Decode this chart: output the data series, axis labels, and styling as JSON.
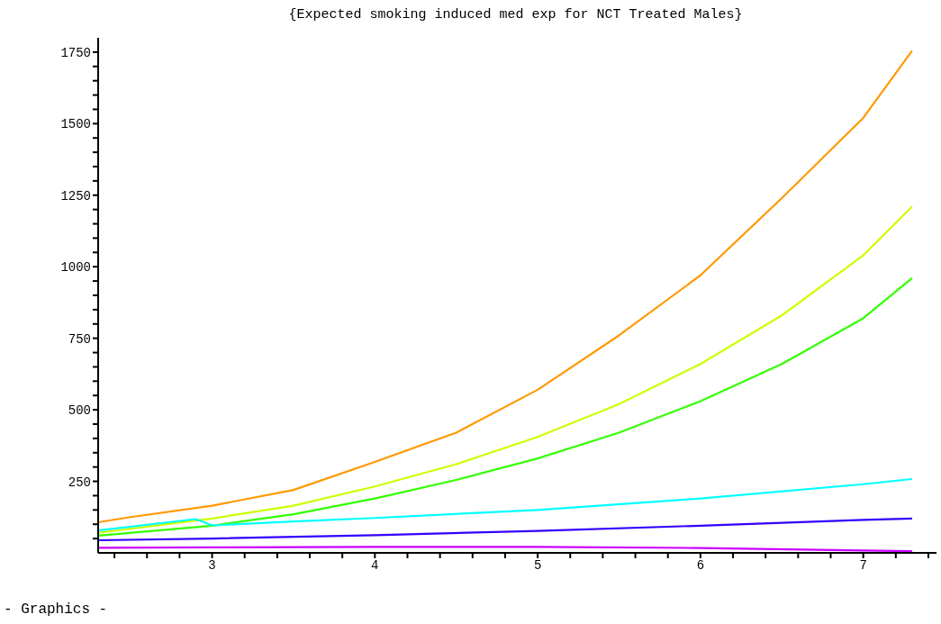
{
  "chart_data": {
    "type": "line",
    "title": "{Expected smoking induced med exp for NCT Treated Males}",
    "annotations": [
      "- Graphics -"
    ],
    "xlim": [
      2.3,
      7.45
    ],
    "xticks": [
      {
        "value": 2.4,
        "label": null
      },
      {
        "value": 2.6,
        "label": null
      },
      {
        "value": 2.8,
        "label": null
      },
      3,
      {
        "value": 3.2,
        "label": null
      },
      {
        "value": 3.4,
        "label": null
      },
      {
        "value": 3.6,
        "label": null
      },
      {
        "value": 3.8,
        "label": null
      },
      4,
      {
        "value": 4.2,
        "label": null
      },
      {
        "value": 4.4,
        "label": null
      },
      {
        "value": 4.6,
        "label": null
      },
      {
        "value": 4.8,
        "label": null
      },
      5,
      {
        "value": 5.2,
        "label": null
      },
      {
        "value": 5.4,
        "label": null
      },
      {
        "value": 5.6,
        "label": null
      },
      {
        "value": 5.8,
        "label": null
      },
      6,
      {
        "value": 6.2,
        "label": null
      },
      {
        "value": 6.4,
        "label": null
      },
      {
        "value": 6.6,
        "label": null
      },
      {
        "value": 6.8,
        "label": null
      },
      7,
      {
        "value": 7.2,
        "label": null
      },
      {
        "value": 7.4,
        "label": null
      }
    ],
    "ylim": [
      0,
      1800
    ],
    "yticks": [
      {
        "value": 50,
        "label": null
      },
      {
        "value": 100,
        "label": null
      },
      {
        "value": 150,
        "label": null
      },
      {
        "value": 200,
        "label": null
      },
      250,
      {
        "value": 300,
        "label": null
      },
      {
        "value": 350,
        "label": null
      },
      {
        "value": 400,
        "label": null
      },
      {
        "value": 450,
        "label": null
      },
      500,
      {
        "value": 550,
        "label": null
      },
      {
        "value": 600,
        "label": null
      },
      {
        "value": 650,
        "label": null
      },
      {
        "value": 700,
        "label": null
      },
      750,
      {
        "value": 800,
        "label": null
      },
      {
        "value": 850,
        "label": null
      },
      {
        "value": 900,
        "label": null
      },
      {
        "value": 950,
        "label": null
      },
      1000,
      {
        "value": 1050,
        "label": null
      },
      {
        "value": 1100,
        "label": null
      },
      {
        "value": 1150,
        "label": null
      },
      {
        "value": 1200,
        "label": null
      },
      1250,
      {
        "value": 1300,
        "label": null
      },
      {
        "value": 1350,
        "label": null
      },
      {
        "value": 1400,
        "label": null
      },
      {
        "value": 1450,
        "label": null
      },
      1500,
      {
        "value": 1550,
        "label": null
      },
      {
        "value": 1600,
        "label": null
      },
      {
        "value": 1650,
        "label": null
      },
      {
        "value": 1700,
        "label": null
      },
      1750
    ],
    "series": [
      {
        "color": "#ff9900",
        "x": [
          2.3,
          2.5,
          3,
          3.5,
          4,
          4.5,
          5,
          5.5,
          6,
          6.5,
          7,
          7.3
        ],
        "values": [
          107,
          125,
          165,
          220,
          318,
          420,
          570,
          760,
          970,
          1240,
          1520,
          1755
        ]
      },
      {
        "color": "#ccff00",
        "x": [
          2.3,
          3,
          3.5,
          4,
          4.5,
          5,
          5.5,
          6,
          6.5,
          7,
          7.3
        ],
        "values": [
          70,
          120,
          165,
          232,
          310,
          405,
          520,
          660,
          830,
          1040,
          1210
        ]
      },
      {
        "color": "#33ff00",
        "x": [
          2.3,
          3,
          3.5,
          4,
          4.5,
          5,
          5.5,
          6,
          6.5,
          7,
          7.3
        ],
        "values": [
          60,
          95,
          135,
          190,
          255,
          330,
          420,
          530,
          660,
          820,
          960
        ]
      },
      {
        "color": "#00ffff",
        "x": [
          2.3,
          2.9,
          3,
          3.5,
          4,
          5,
          6,
          7,
          7.3
        ],
        "values": [
          78,
          118,
          96,
          110,
          122,
          150,
          190,
          240,
          258
        ]
      },
      {
        "color": "#3300ff",
        "x": [
          2.3,
          3,
          4,
          5,
          6,
          7,
          7.3
        ],
        "values": [
          44,
          50,
          62,
          77,
          95,
          115,
          120
        ]
      },
      {
        "color": "#cc00ff",
        "x": [
          2.3,
          3,
          4,
          5,
          6,
          7,
          7.3
        ],
        "values": [
          18,
          19,
          21,
          21,
          17,
          8,
          6
        ]
      }
    ]
  }
}
